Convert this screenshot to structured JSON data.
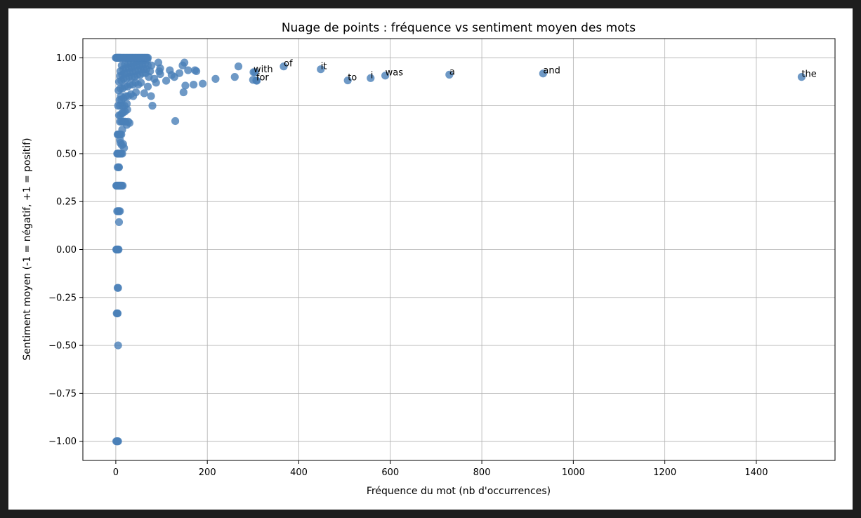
{
  "chart_data": {
    "type": "scatter",
    "title": "Nuage de points : fréquence vs sentiment moyen des mots",
    "xlabel": "Fréquence du mot (nb d'occurrences)",
    "ylabel": "Sentiment moyen (-1 = négatif, +1 = positif)",
    "xlim": [
      -72,
      1572
    ],
    "ylim": [
      -1.1,
      1.1
    ],
    "xticks": [
      0,
      200,
      400,
      600,
      800,
      1000,
      1200,
      1400
    ],
    "xtick_labels": [
      "0",
      "200",
      "400",
      "600",
      "800",
      "1000",
      "1200",
      "1400"
    ],
    "yticks": [
      1.0,
      0.75,
      0.5,
      0.25,
      0.0,
      -0.25,
      -0.5,
      -0.75,
      -1.0
    ],
    "ytick_labels": [
      "1.00",
      "0.75",
      "0.50",
      "0.25",
      "0.00",
      "−0.25",
      "−0.50",
      "−0.75",
      "−1.00"
    ],
    "grid": true,
    "marker_color": "#4a7fb8",
    "points": [
      [
        1,
        -1.0
      ],
      [
        2,
        -1.0
      ],
      [
        3,
        -1.0
      ],
      [
        4,
        -1.0
      ],
      [
        5,
        -1.0
      ],
      [
        2,
        -0.333
      ],
      [
        3,
        -0.333
      ],
      [
        4,
        -0.333
      ],
      [
        5,
        -0.5
      ],
      [
        4,
        -0.2
      ],
      [
        5,
        -0.2
      ],
      [
        1,
        0.0
      ],
      [
        2,
        0.0
      ],
      [
        3,
        0.0
      ],
      [
        4,
        0.0
      ],
      [
        5,
        0.0
      ],
      [
        6,
        0.0
      ],
      [
        7,
        0.143
      ],
      [
        3,
        0.2
      ],
      [
        5,
        0.2
      ],
      [
        7,
        0.2
      ],
      [
        9,
        0.2
      ],
      [
        1,
        0.333
      ],
      [
        2,
        0.333
      ],
      [
        3,
        0.333
      ],
      [
        4,
        0.333
      ],
      [
        5,
        0.333
      ],
      [
        6,
        0.333
      ],
      [
        7,
        0.333
      ],
      [
        8,
        0.333
      ],
      [
        9,
        0.333
      ],
      [
        10,
        0.333
      ],
      [
        11,
        0.333
      ],
      [
        12,
        0.333
      ],
      [
        13,
        0.333
      ],
      [
        15,
        0.333
      ],
      [
        4,
        0.429
      ],
      [
        6,
        0.429
      ],
      [
        7,
        0.429
      ],
      [
        3,
        0.5
      ],
      [
        4,
        0.5
      ],
      [
        5,
        0.5
      ],
      [
        6,
        0.5
      ],
      [
        7,
        0.5
      ],
      [
        8,
        0.5
      ],
      [
        10,
        0.5
      ],
      [
        12,
        0.5
      ],
      [
        14,
        0.5
      ],
      [
        18,
        0.53
      ],
      [
        10,
        0.556
      ],
      [
        13,
        0.545
      ],
      [
        9,
        0.571
      ],
      [
        16,
        0.55
      ],
      [
        4,
        0.6
      ],
      [
        5,
        0.6
      ],
      [
        6,
        0.6
      ],
      [
        8,
        0.6
      ],
      [
        10,
        0.6
      ],
      [
        12,
        0.6
      ],
      [
        14,
        0.625
      ],
      [
        9,
        0.667
      ],
      [
        12,
        0.667
      ],
      [
        15,
        0.667
      ],
      [
        18,
        0.667
      ],
      [
        21,
        0.667
      ],
      [
        27,
        0.667
      ],
      [
        30,
        0.66
      ],
      [
        24,
        0.65
      ],
      [
        7,
        0.7
      ],
      [
        10,
        0.7
      ],
      [
        13,
        0.71
      ],
      [
        16,
        0.714
      ],
      [
        20,
        0.72
      ],
      [
        25,
        0.73
      ],
      [
        5,
        0.75
      ],
      [
        9,
        0.75
      ],
      [
        14,
        0.75
      ],
      [
        19,
        0.75
      ],
      [
        24,
        0.76
      ],
      [
        80,
        0.75
      ],
      [
        8,
        0.78
      ],
      [
        12,
        0.78
      ],
      [
        17,
        0.79
      ],
      [
        22,
        0.8
      ],
      [
        27,
        0.8
      ],
      [
        33,
        0.81
      ],
      [
        38,
        0.8
      ],
      [
        44,
        0.82
      ],
      [
        11,
        0.8
      ],
      [
        77,
        0.8
      ],
      [
        62,
        0.815
      ],
      [
        6,
        0.83
      ],
      [
        10,
        0.84
      ],
      [
        15,
        0.84
      ],
      [
        20,
        0.85
      ],
      [
        26,
        0.85
      ],
      [
        31,
        0.86
      ],
      [
        37,
        0.86
      ],
      [
        43,
        0.87
      ],
      [
        49,
        0.86
      ],
      [
        55,
        0.87
      ],
      [
        70,
        0.85
      ],
      [
        88,
        0.87
      ],
      [
        7,
        0.875
      ],
      [
        12,
        0.88
      ],
      [
        17,
        0.89
      ],
      [
        23,
        0.89
      ],
      [
        29,
        0.9
      ],
      [
        35,
        0.9
      ],
      [
        41,
        0.9
      ],
      [
        47,
        0.91
      ],
      [
        53,
        0.91
      ],
      [
        59,
        0.92
      ],
      [
        65,
        0.92
      ],
      [
        72,
        0.9
      ],
      [
        84,
        0.89
      ],
      [
        9,
        0.905
      ],
      [
        14,
        0.91
      ],
      [
        19,
        0.92
      ],
      [
        25,
        0.92
      ],
      [
        31,
        0.925
      ],
      [
        37,
        0.93
      ],
      [
        43,
        0.93
      ],
      [
        49,
        0.935
      ],
      [
        55,
        0.94
      ],
      [
        61,
        0.94
      ],
      [
        67,
        0.94
      ],
      [
        75,
        0.93
      ],
      [
        95,
        0.93
      ],
      [
        10,
        0.93
      ],
      [
        16,
        0.94
      ],
      [
        22,
        0.945
      ],
      [
        28,
        0.95
      ],
      [
        34,
        0.95
      ],
      [
        40,
        0.955
      ],
      [
        46,
        0.96
      ],
      [
        52,
        0.96
      ],
      [
        58,
        0.965
      ],
      [
        64,
        0.97
      ],
      [
        70,
        0.96
      ],
      [
        78,
        0.96
      ],
      [
        93,
        0.975
      ],
      [
        13,
        0.96
      ],
      [
        20,
        0.965
      ],
      [
        27,
        0.97
      ],
      [
        33,
        0.975
      ],
      [
        39,
        0.975
      ],
      [
        45,
        0.98
      ],
      [
        51,
        0.985
      ],
      [
        57,
        0.985
      ],
      [
        63,
        0.99
      ],
      [
        69,
        0.99
      ],
      [
        0,
        1.0
      ],
      [
        1,
        1.0
      ],
      [
        2,
        1.0
      ],
      [
        3,
        1.0
      ],
      [
        4,
        1.0
      ],
      [
        5,
        1.0
      ],
      [
        6,
        1.0
      ],
      [
        7,
        1.0
      ],
      [
        8,
        1.0
      ],
      [
        9,
        1.0
      ],
      [
        10,
        1.0
      ],
      [
        12,
        1.0
      ],
      [
        14,
        1.0
      ],
      [
        16,
        1.0
      ],
      [
        18,
        1.0
      ],
      [
        20,
        1.0
      ],
      [
        22,
        1.0
      ],
      [
        24,
        1.0
      ],
      [
        26,
        1.0
      ],
      [
        28,
        1.0
      ],
      [
        30,
        1.0
      ],
      [
        32,
        1.0
      ],
      [
        34,
        1.0
      ],
      [
        36,
        1.0
      ],
      [
        38,
        1.0
      ],
      [
        40,
        1.0
      ],
      [
        42,
        1.0
      ],
      [
        44,
        1.0
      ],
      [
        46,
        1.0
      ],
      [
        48,
        1.0
      ],
      [
        50,
        1.0
      ],
      [
        52,
        1.0
      ],
      [
        54,
        1.0
      ],
      [
        56,
        1.0
      ],
      [
        58,
        1.0
      ],
      [
        60,
        1.0
      ],
      [
        62,
        1.0
      ],
      [
        64,
        1.0
      ],
      [
        66,
        1.0
      ],
      [
        68,
        1.0
      ],
      [
        70,
        1.0
      ],
      [
        97,
        0.915
      ],
      [
        97,
        0.945
      ],
      [
        110,
        0.88
      ],
      [
        118,
        0.935
      ],
      [
        122,
        0.91
      ],
      [
        128,
        0.9
      ],
      [
        130,
        0.67
      ],
      [
        139,
        0.92
      ],
      [
        146,
        0.96
      ],
      [
        148,
        0.82
      ],
      [
        150,
        0.975
      ],
      [
        152,
        0.855
      ],
      [
        158,
        0.935
      ],
      [
        170,
        0.86
      ],
      [
        173,
        0.935
      ],
      [
        176,
        0.93
      ],
      [
        190,
        0.865
      ],
      [
        218,
        0.89
      ],
      [
        260,
        0.9
      ],
      [
        268,
        0.955
      ],
      [
        300,
        0.885
      ],
      [
        304,
        0.925
      ],
      [
        308,
        0.88
      ]
    ],
    "labeled_points": [
      {
        "x": 301,
        "y": 0.925,
        "label": "with"
      },
      {
        "x": 307,
        "y": 0.882,
        "label": "for"
      },
      {
        "x": 367,
        "y": 0.955,
        "label": "of"
      },
      {
        "x": 448,
        "y": 0.94,
        "label": "it"
      },
      {
        "x": 507,
        "y": 0.882,
        "label": "to"
      },
      {
        "x": 557,
        "y": 0.894,
        "label": "i"
      },
      {
        "x": 589,
        "y": 0.907,
        "label": "was"
      },
      {
        "x": 729,
        "y": 0.912,
        "label": "a"
      },
      {
        "x": 934,
        "y": 0.918,
        "label": "and"
      },
      {
        "x": 1499,
        "y": 0.9,
        "label": "the"
      }
    ]
  }
}
